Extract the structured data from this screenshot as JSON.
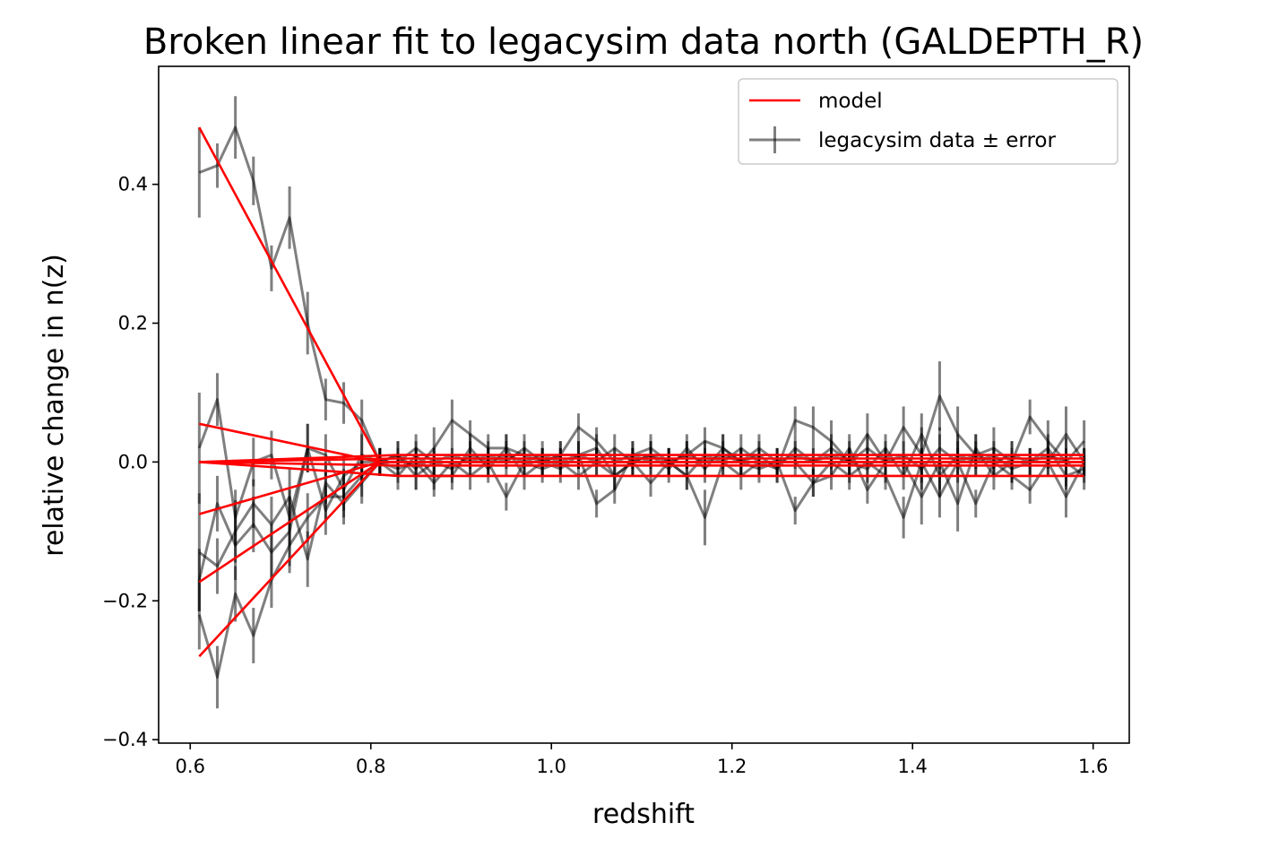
{
  "chart_data": {
    "type": "line",
    "title": "Broken linear fit to legacysim data north (GALDEPTH_R)",
    "xlabel": "redshift",
    "ylabel": "relative change in n(z)",
    "xlim": [
      0.565,
      1.64
    ],
    "ylim": [
      -0.405,
      0.57
    ],
    "xticks": [
      0.6,
      0.8,
      1.0,
      1.2,
      1.4,
      1.6
    ],
    "xtick_labels": [
      "0.6",
      "0.8",
      "1.0",
      "1.2",
      "1.4",
      "1.6"
    ],
    "yticks": [
      -0.4,
      -0.2,
      0.0,
      0.2,
      0.4
    ],
    "ytick_labels": [
      "−0.4",
      "−0.2",
      "0.0",
      "0.2",
      "0.4"
    ],
    "grid": false,
    "legend": {
      "position": "top-right",
      "entries": [
        "model",
        "legacysim data ± error"
      ]
    },
    "colors": {
      "model": "#ff0000",
      "data": "#000000"
    },
    "x": [
      0.61,
      0.63,
      0.65,
      0.67,
      0.69,
      0.71,
      0.73,
      0.75,
      0.77,
      0.79,
      0.81,
      0.83,
      0.85,
      0.87,
      0.89,
      0.91,
      0.93,
      0.95,
      0.97,
      0.99,
      1.01,
      1.03,
      1.05,
      1.07,
      1.09,
      1.11,
      1.13,
      1.15,
      1.17,
      1.19,
      1.21,
      1.23,
      1.25,
      1.27,
      1.29,
      1.31,
      1.33,
      1.35,
      1.37,
      1.39,
      1.41,
      1.43,
      1.45,
      1.47,
      1.49,
      1.51,
      1.53,
      1.55,
      1.57,
      1.59
    ],
    "data_series": [
      {
        "values": [
          0.417,
          0.427,
          0.482,
          0.405,
          0.279,
          0.352,
          0.2,
          0.09,
          0.085,
          0.06,
          0.0,
          0.01,
          -0.01,
          0.02,
          0.06,
          0.04,
          0.02,
          0.02,
          0.01,
          0.0,
          0.01,
          0.05,
          0.03,
          0.0,
          0.01,
          0.02,
          0.0,
          0.01,
          0.03,
          0.02,
          0.0,
          0.01,
          -0.01,
          0.06,
          0.05,
          0.03,
          0.0,
          0.04,
          0.0,
          0.05,
          0.01,
          0.095,
          0.04,
          0.01,
          0.02,
          0.0,
          0.065,
          0.03,
          0.0,
          0.03
        ],
        "errors": [
          0.065,
          0.032,
          0.045,
          0.035,
          0.033,
          0.045,
          0.045,
          0.03,
          0.03,
          0.03,
          0.02,
          0.02,
          0.03,
          0.03,
          0.03,
          0.02,
          0.02,
          0.02,
          0.02,
          0.02,
          0.02,
          0.02,
          0.02,
          0.02,
          0.02,
          0.02,
          0.02,
          0.02,
          0.02,
          0.02,
          0.02,
          0.02,
          0.02,
          0.02,
          0.03,
          0.03,
          0.03,
          0.03,
          0.03,
          0.03,
          0.04,
          0.05,
          0.04,
          0.03,
          0.03,
          0.03,
          0.025,
          0.03,
          0.035,
          0.03
        ]
      },
      {
        "values": [
          0.02,
          0.09,
          -0.08,
          0.0,
          0.01,
          -0.08,
          0.02,
          0.01,
          -0.04,
          0.01,
          0.0,
          0.0,
          0.02,
          0.0,
          0.01,
          0.0,
          0.01,
          0.0,
          0.02,
          0.0,
          0.01,
          0.01,
          -0.06,
          -0.04,
          0.01,
          0.0,
          0.0,
          -0.02,
          0.01,
          0.0,
          0.02,
          0.0,
          -0.01,
          0.02,
          0.0,
          0.02,
          0.0,
          -0.01,
          0.02,
          -0.02,
          0.04,
          -0.02,
          0.01,
          0.0,
          0.01,
          -0.01,
          0.0,
          0.0,
          0.04,
          0.0
        ],
        "errors": [
          0.08,
          0.038,
          0.04,
          0.035,
          0.035,
          0.04,
          0.035,
          0.03,
          0.03,
          0.03,
          0.02,
          0.02,
          0.02,
          0.02,
          0.02,
          0.02,
          0.02,
          0.02,
          0.02,
          0.02,
          0.02,
          0.02,
          0.02,
          0.02,
          0.02,
          0.02,
          0.02,
          0.02,
          0.02,
          0.02,
          0.02,
          0.02,
          0.02,
          0.02,
          0.02,
          0.02,
          0.02,
          0.02,
          0.02,
          0.02,
          0.03,
          0.03,
          0.03,
          0.02,
          0.02,
          0.02,
          0.02,
          0.02,
          0.04,
          0.02
        ]
      },
      {
        "values": [
          -0.13,
          -0.15,
          -0.1,
          -0.06,
          -0.09,
          -0.05,
          -0.14,
          -0.03,
          -0.06,
          -0.03,
          0.0,
          -0.01,
          0.0,
          -0.03,
          0.0,
          -0.02,
          0.0,
          -0.05,
          0.0,
          -0.01,
          0.0,
          -0.02,
          0.0,
          -0.02,
          0.0,
          -0.03,
          0.0,
          -0.02,
          -0.08,
          0.0,
          -0.02,
          0.0,
          0.0,
          -0.07,
          -0.03,
          0.0,
          -0.02,
          0.0,
          -0.02,
          -0.08,
          0.0,
          -0.05,
          0.0,
          -0.06,
          0.0,
          -0.02,
          -0.04,
          0.0,
          -0.05,
          0.0
        ],
        "errors": [
          0.085,
          0.04,
          0.045,
          0.035,
          0.04,
          0.04,
          0.04,
          0.03,
          0.03,
          0.03,
          0.02,
          0.02,
          0.02,
          0.02,
          0.02,
          0.02,
          0.02,
          0.02,
          0.02,
          0.02,
          0.02,
          0.02,
          0.02,
          0.02,
          0.02,
          0.02,
          0.02,
          0.02,
          0.04,
          0.02,
          0.02,
          0.02,
          0.02,
          0.02,
          0.02,
          0.02,
          0.02,
          0.02,
          0.02,
          0.03,
          0.02,
          0.03,
          0.02,
          0.02,
          0.02,
          0.02,
          0.02,
          0.02,
          0.03,
          0.02
        ]
      },
      {
        "values": [
          -0.17,
          -0.06,
          -0.12,
          -0.09,
          -0.13,
          -0.1,
          0.02,
          -0.07,
          -0.02,
          0.0,
          0.0,
          -0.02,
          0.01,
          -0.02,
          -0.02,
          0.02,
          -0.01,
          0.02,
          -0.02,
          0.0,
          -0.01,
          0.01,
          0.02,
          -0.02,
          0.0,
          0.01,
          -0.01,
          0.02,
          -0.01,
          0.02,
          0.0,
          -0.01,
          0.0,
          0.0,
          -0.03,
          -0.02,
          0.02,
          -0.04,
          0.0,
          0.0,
          -0.05,
          0.0,
          -0.06,
          0.02,
          -0.02,
          0.0,
          0.0,
          0.02,
          -0.02,
          -0.01
        ],
        "errors": [
          0.045,
          0.04,
          0.05,
          0.04,
          0.04,
          0.05,
          0.035,
          0.035,
          0.03,
          0.03,
          0.02,
          0.02,
          0.02,
          0.02,
          0.02,
          0.02,
          0.02,
          0.02,
          0.02,
          0.02,
          0.02,
          0.02,
          0.02,
          0.02,
          0.02,
          0.02,
          0.02,
          0.02,
          0.02,
          0.02,
          0.02,
          0.02,
          0.02,
          0.02,
          0.02,
          0.02,
          0.02,
          0.02,
          0.02,
          0.02,
          0.04,
          0.04,
          0.04,
          0.02,
          0.02,
          0.02,
          0.02,
          0.02,
          0.02,
          0.02
        ]
      },
      {
        "values": [
          -0.22,
          -0.31,
          -0.19,
          -0.25,
          -0.17,
          -0.12,
          -0.08,
          -0.05,
          -0.05,
          -0.02,
          0.0,
          0.01,
          -0.02,
          0.0,
          -0.01,
          0.01,
          0.0,
          0.01,
          0.0,
          0.01,
          0.0,
          0.01,
          0.0,
          0.02,
          0.0,
          0.01,
          0.0,
          0.01,
          0.0,
          0.01,
          0.0,
          0.02,
          0.0,
          0.01,
          0.0,
          0.01,
          0.0,
          0.02,
          0.0,
          0.01,
          -0.01,
          0.02,
          0.0,
          0.01,
          0.0,
          0.01,
          0.0,
          0.01,
          0.0,
          -0.02
        ],
        "errors": [
          0.05,
          0.045,
          0.04,
          0.04,
          0.04,
          0.04,
          0.035,
          0.035,
          0.03,
          0.03,
          0.02,
          0.02,
          0.02,
          0.02,
          0.02,
          0.02,
          0.02,
          0.02,
          0.02,
          0.02,
          0.02,
          0.02,
          0.02,
          0.02,
          0.02,
          0.02,
          0.02,
          0.02,
          0.02,
          0.02,
          0.02,
          0.02,
          0.02,
          0.02,
          0.02,
          0.02,
          0.02,
          0.02,
          0.02,
          0.02,
          0.03,
          0.03,
          0.03,
          0.02,
          0.02,
          0.02,
          0.02,
          0.02,
          0.02,
          0.02
        ]
      }
    ],
    "model_lines": [
      {
        "x": [
          0.61,
          0.81,
          1.59
        ],
        "y": [
          0.482,
          0.0,
          0.0
        ]
      },
      {
        "x": [
          0.61,
          0.81,
          1.59
        ],
        "y": [
          0.055,
          0.0,
          0.0
        ]
      },
      {
        "x": [
          0.61,
          0.81,
          1.59
        ],
        "y": [
          -0.075,
          0.0,
          0.0
        ]
      },
      {
        "x": [
          0.61,
          0.81,
          1.59
        ],
        "y": [
          -0.173,
          0.0,
          0.0
        ]
      },
      {
        "x": [
          0.61,
          0.81,
          1.59
        ],
        "y": [
          -0.28,
          0.0,
          0.0
        ]
      },
      {
        "x": [
          0.61,
          0.83,
          1.59
        ],
        "y": [
          0.0,
          0.01,
          0.01
        ]
      },
      {
        "x": [
          0.61,
          0.83,
          1.59
        ],
        "y": [
          0.0,
          -0.02,
          -0.02
        ]
      },
      {
        "x": [
          0.61,
          0.83,
          1.59
        ],
        "y": [
          0.0,
          0.005,
          0.005
        ]
      },
      {
        "x": [
          0.61,
          0.83,
          1.59
        ],
        "y": [
          0.0,
          -0.005,
          -0.005
        ]
      }
    ]
  }
}
